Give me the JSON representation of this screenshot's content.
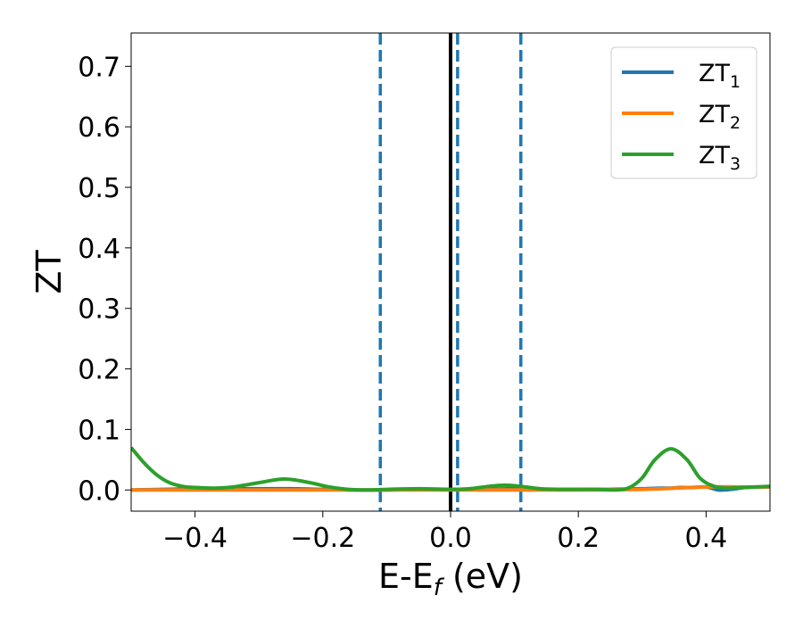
{
  "chart_data": {
    "type": "line",
    "xlabel": "E-E",
    "xlabel_sub": "f",
    "xlabel_unit": " (eV)",
    "ylabel": "ZT",
    "xlim": [
      -0.5,
      0.5
    ],
    "ylim": [
      -0.035,
      0.755
    ],
    "x_ticks": [
      -0.4,
      -0.2,
      0.0,
      0.2,
      0.4
    ],
    "x_tick_labels": [
      "−0.4",
      "−0.2",
      "0.0",
      "0.2",
      "0.4"
    ],
    "y_ticks": [
      0.0,
      0.1,
      0.2,
      0.3,
      0.4,
      0.5,
      0.6,
      0.7
    ],
    "y_tick_labels": [
      "0.0",
      "0.1",
      "0.2",
      "0.3",
      "0.4",
      "0.5",
      "0.6",
      "0.7"
    ],
    "grid": false,
    "legend_position": "top-right",
    "reference_lines": [
      {
        "x": 0.0,
        "style": "solid",
        "color": "#000000"
      },
      {
        "x": -0.11,
        "style": "dashed",
        "color": "#1f77b4"
      },
      {
        "x": 0.011,
        "style": "dashed",
        "color": "#1f77b4"
      },
      {
        "x": 0.11,
        "style": "dashed",
        "color": "#1f77b4"
      }
    ],
    "series": [
      {
        "name": "ZT",
        "sub": "1",
        "color": "#1f77b4",
        "x": [
          -0.5,
          -0.45,
          -0.4,
          -0.35,
          -0.3,
          -0.25,
          -0.2,
          -0.15,
          -0.1,
          -0.05,
          0.0,
          0.05,
          0.1,
          0.15,
          0.2,
          0.25,
          0.3,
          0.33,
          0.345,
          0.36,
          0.38,
          0.4,
          0.42,
          0.44,
          0.46,
          0.48,
          0.5
        ],
        "y": [
          0.0,
          0.001,
          0.002,
          0.002,
          0.002,
          0.002,
          0.001,
          0.0,
          0.0,
          0.001,
          0.001,
          0.001,
          0.002,
          0.001,
          0.001,
          0.001,
          0.002,
          0.003,
          0.003,
          0.004,
          0.004,
          0.005,
          0.0,
          0.001,
          0.004,
          0.005,
          0.005
        ]
      },
      {
        "name": "ZT",
        "sub": "2",
        "color": "#ff7f0e",
        "x": [
          -0.5,
          -0.4,
          -0.3,
          -0.2,
          -0.1,
          0.0,
          0.1,
          0.2,
          0.3,
          0.35,
          0.4,
          0.45,
          0.5
        ],
        "y": [
          0.0,
          0.0,
          0.0,
          0.0,
          0.0,
          0.0,
          0.0,
          0.0,
          0.001,
          0.003,
          0.005,
          0.005,
          0.005
        ]
      },
      {
        "name": "ZT",
        "sub": "3",
        "color": "#2ca02c",
        "x": [
          -0.5,
          -0.48,
          -0.46,
          -0.44,
          -0.42,
          -0.4,
          -0.37,
          -0.34,
          -0.3,
          -0.26,
          -0.22,
          -0.19,
          -0.16,
          -0.13,
          -0.1,
          -0.05,
          0.0,
          0.03,
          0.06,
          0.085,
          0.11,
          0.14,
          0.17,
          0.2,
          0.23,
          0.26,
          0.28,
          0.3,
          0.32,
          0.345,
          0.37,
          0.39,
          0.41,
          0.43,
          0.46,
          0.5
        ],
        "y": [
          0.07,
          0.045,
          0.025,
          0.012,
          0.006,
          0.004,
          0.003,
          0.005,
          0.012,
          0.018,
          0.012,
          0.005,
          0.001,
          0.0,
          0.001,
          0.002,
          0.001,
          0.002,
          0.006,
          0.008,
          0.006,
          0.002,
          0.001,
          0.001,
          0.001,
          0.0,
          0.004,
          0.02,
          0.05,
          0.068,
          0.05,
          0.02,
          0.007,
          0.003,
          0.004,
          0.006
        ]
      }
    ]
  }
}
